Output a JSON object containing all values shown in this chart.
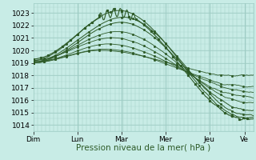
{
  "bg_color": "#c8ece6",
  "plot_bg_color": "#c8ece6",
  "grid_color": "#9eccc4",
  "line_color": "#2d5a27",
  "ylim": [
    1013.5,
    1023.8
  ],
  "yticks": [
    1014,
    1015,
    1016,
    1017,
    1018,
    1019,
    1020,
    1021,
    1022,
    1023
  ],
  "xlabel": "Pression niveau de la mer( hPa )",
  "xlabel_fontsize": 7.5,
  "day_labels": [
    "Dim",
    "Lun",
    "Mar",
    "Mer",
    "Jeu",
    "Ve"
  ],
  "day_positions": [
    0,
    0.2,
    0.4,
    0.6,
    0.8,
    0.96
  ],
  "tick_fontsize": 6.5
}
